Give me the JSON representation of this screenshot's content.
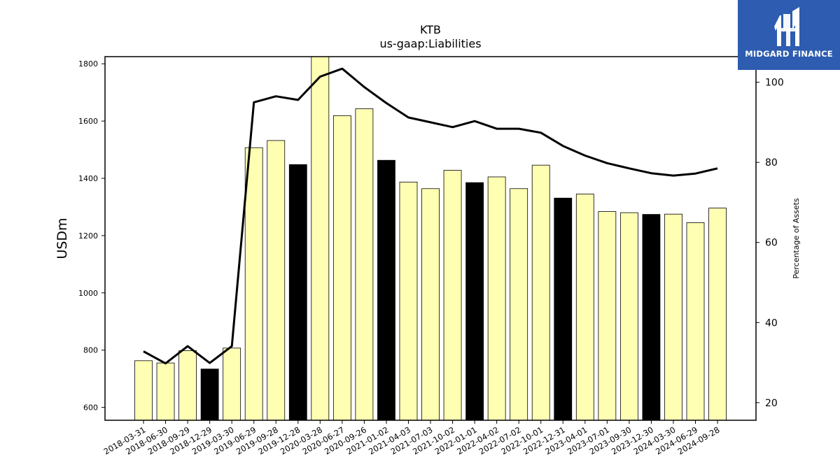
{
  "chart_data": {
    "type": "bar",
    "title": "KTB",
    "subtitle": "us-gaap:Liabilities",
    "ylabel": "USDm",
    "y2label": "Percentage of Assets",
    "ylim": [
      555,
      1825
    ],
    "y2lim": [
      15.6,
      106.4
    ],
    "yticks": [
      600,
      800,
      1000,
      1200,
      1400,
      1600,
      1800
    ],
    "y2ticks": [
      20,
      40,
      60,
      80,
      100
    ],
    "categories": [
      "2018-03-31",
      "2018-06-30",
      "2018-09-29",
      "2018-12-29",
      "2019-03-30",
      "2019-06-29",
      "2019-09-28",
      "2019-12-28",
      "2020-03-28",
      "2020-06-27",
      "2020-09-26",
      "2021-01-02",
      "2021-04-03",
      "2021-07-03",
      "2021-10-02",
      "2022-01-01",
      "2022-04-02",
      "2022-07-02",
      "2022-10-01",
      "2022-12-31",
      "2023-04-01",
      "2023-07-01",
      "2023-09-30",
      "2023-12-30",
      "2024-03-30",
      "2024-06-29",
      "2024-09-28"
    ],
    "series": [
      {
        "kind": "bar",
        "values": [
          763,
          755,
          798,
          734,
          807,
          1507,
          1532,
          1448,
          1830,
          1619,
          1643,
          1463,
          1387,
          1364,
          1428,
          1385,
          1405,
          1364,
          1446,
          1331,
          1345,
          1284,
          1280,
          1274,
          1275,
          1245,
          1296
        ],
        "highlight": [
          false,
          false,
          false,
          true,
          false,
          false,
          false,
          true,
          false,
          false,
          false,
          true,
          false,
          false,
          false,
          true,
          false,
          false,
          false,
          true,
          false,
          false,
          false,
          true,
          false,
          false,
          false
        ]
      },
      {
        "kind": "line",
        "axis": "right",
        "values": [
          32.8,
          29.8,
          34.1,
          29.9,
          34.1,
          95.0,
          96.5,
          95.6,
          101.4,
          103.4,
          98.8,
          94.8,
          91.2,
          90.0,
          88.8,
          90.3,
          88.4,
          88.4,
          87.4,
          84.1,
          81.7,
          79.8,
          78.5,
          77.3,
          76.7,
          77.2,
          78.5
        ]
      }
    ],
    "colors": {
      "bar": "#ffffb4",
      "bar_highlight": "#000000",
      "line": "#000000"
    },
    "grid": false
  },
  "logo": {
    "text": "MIDGARD FINANCE",
    "bg": "#2d5cb0"
  }
}
